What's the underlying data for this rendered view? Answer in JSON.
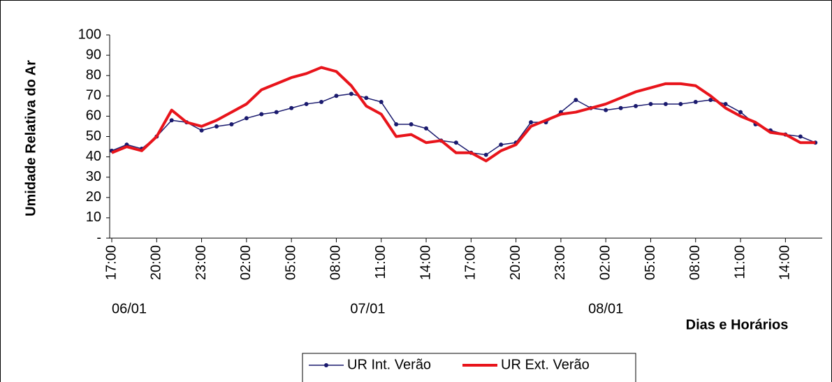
{
  "chart_data": {
    "type": "line",
    "y_label": "Umidade Relativa do Ar",
    "x_label": "Dias e Horários",
    "date_labels": [
      "06/01",
      "07/01",
      "08/01"
    ],
    "categories": [
      "17:00",
      null,
      null,
      "20:00",
      null,
      null,
      "23:00",
      null,
      null,
      "02:00",
      null,
      null,
      "05:00",
      null,
      null,
      "08:00",
      null,
      null,
      "11:00",
      null,
      null,
      "14:00",
      null,
      null,
      "17:00",
      null,
      null,
      "20:00",
      null,
      null,
      "23:00",
      null,
      null,
      "02:00",
      null,
      null,
      "05:00",
      null,
      null,
      "08:00",
      null,
      null,
      "11:00",
      null,
      null,
      "14:00",
      null,
      null
    ],
    "series": [
      {
        "name": "UR Int. Verão",
        "color": "#1a1a6e",
        "marker": true,
        "values": [
          43,
          46,
          44,
          50,
          58,
          57,
          53,
          55,
          56,
          59,
          61,
          62,
          64,
          66,
          67,
          70,
          71,
          69,
          67,
          56,
          56,
          54,
          48,
          47,
          42,
          41,
          46,
          47,
          57,
          57,
          62,
          68,
          64,
          63,
          64,
          65,
          66,
          66,
          66,
          67,
          68,
          66,
          62,
          56,
          53,
          51,
          50,
          47
        ]
      },
      {
        "name": "UR Ext. Verão",
        "color": "#e8141b",
        "marker": false,
        "values": [
          42,
          45,
          43,
          50,
          63,
          57,
          55,
          58,
          62,
          66,
          73,
          76,
          79,
          81,
          84,
          82,
          75,
          65,
          61,
          50,
          51,
          47,
          48,
          42,
          42,
          38,
          43,
          46,
          55,
          58,
          61,
          62,
          64,
          66,
          69,
          72,
          74,
          76,
          76,
          75,
          70,
          64,
          60,
          57,
          52,
          51,
          47,
          47
        ]
      }
    ],
    "ylim": [
      0,
      100
    ],
    "yticks": [
      {
        "value": 0,
        "label": "-"
      },
      10,
      20,
      30,
      40,
      50,
      60,
      70,
      80,
      90,
      100
    ],
    "grid": false,
    "legend": "bottom"
  }
}
